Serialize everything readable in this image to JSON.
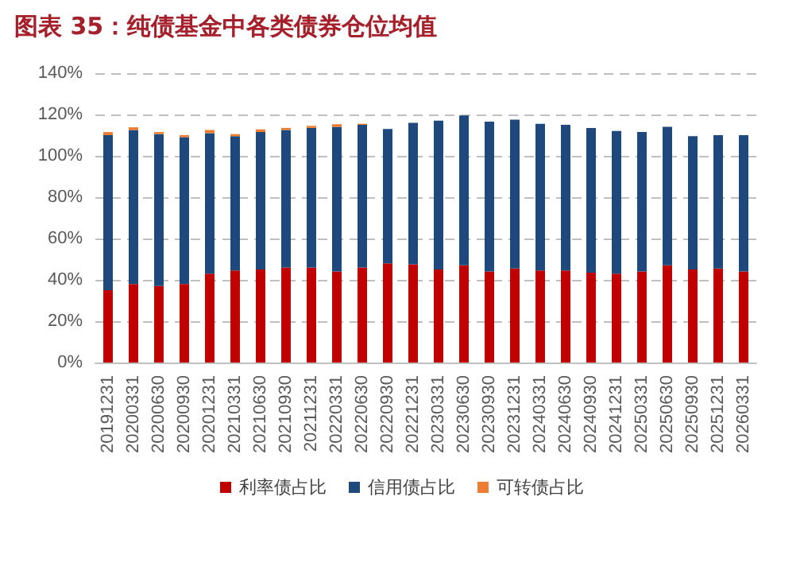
{
  "chart_data": {
    "type": "bar",
    "title": "图表 35：纯债基金中各类债券仓位均值",
    "stacked": true,
    "legend": "bottom",
    "grid": "y",
    "categories": [
      "20191231",
      "20200331",
      "20200630",
      "20200930",
      "20201231",
      "20210331",
      "20210630",
      "20210930",
      "20211231",
      "20220331",
      "20220630",
      "20220930",
      "20221231",
      "20230331",
      "20230630",
      "20230930",
      "20231231",
      "20240331",
      "20240630",
      "20240930",
      "20241231",
      "20250331",
      "20250630",
      "20250930",
      "20251231",
      "20260331"
    ],
    "ylim": [
      0,
      140
    ],
    "yticks": [
      {
        "value": 0,
        "label": "0%"
      },
      {
        "value": 20,
        "label": "20%"
      },
      {
        "value": 40,
        "label": "40%"
      },
      {
        "value": 60,
        "label": "60%"
      },
      {
        "value": 80,
        "label": "80%"
      },
      {
        "value": 100,
        "label": "100%"
      },
      {
        "value": 120,
        "label": "120%"
      },
      {
        "value": 140,
        "label": "140%"
      }
    ],
    "series": [
      {
        "name": "利率债占比",
        "color": "#c00000",
        "values": [
          35,
          38,
          37,
          38,
          43,
          44.5,
          45,
          46,
          46,
          44,
          46,
          48,
          47.5,
          45,
          47,
          44,
          45.5,
          44.5,
          44.5,
          43.5,
          43,
          44,
          47,
          45,
          45.5,
          44
        ]
      },
      {
        "name": "信用债占比",
        "color": "#1f497d",
        "values": [
          75,
          74.5,
          73.5,
          71,
          68,
          65,
          66.5,
          66.5,
          67.5,
          70,
          69,
          65,
          68.5,
          72,
          72.5,
          72.5,
          72,
          71,
          70.5,
          70,
          69,
          67.5,
          67,
          64.5,
          64.5,
          66
        ]
      },
      {
        "name": "可转债占比",
        "color": "#ed7d31",
        "values": [
          1.5,
          1.3,
          1,
          1,
          1.5,
          1,
          1.3,
          1,
          1,
          1.3,
          0.5,
          0,
          0,
          0,
          0,
          0,
          0,
          0,
          0,
          0,
          0,
          0,
          0,
          0,
          0,
          0
        ]
      }
    ]
  }
}
